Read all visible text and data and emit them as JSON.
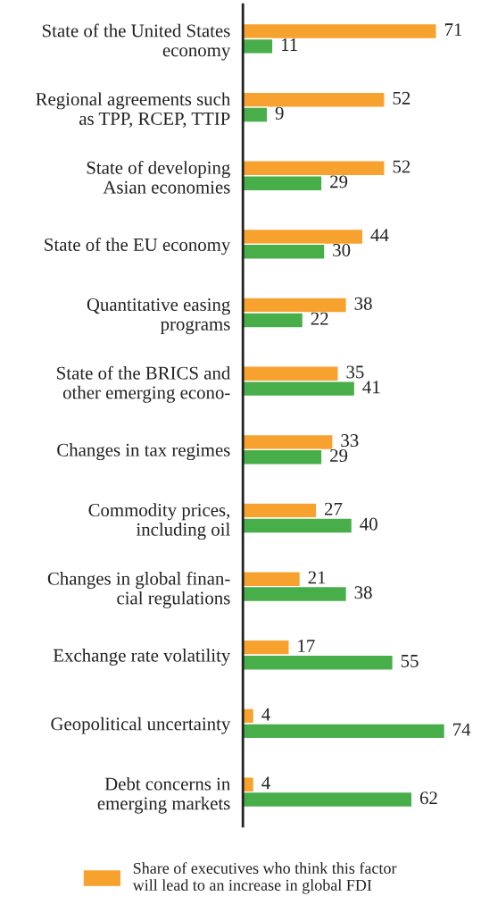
{
  "chart_data": {
    "type": "bar",
    "orientation": "horizontal",
    "data_labels": true,
    "legend": "bottom",
    "grid": false,
    "categories": [
      "State of the United States\neconomy",
      "Regional agreements such\nas TPP, RCEP, TTIP",
      "State of developing\nAsian economies",
      "State of the EU economy",
      "Quantitative easing\nprograms",
      "State of the BRICS and\nother emerging econo-",
      "Changes in tax regimes",
      "Commodity prices,\nincluding oil",
      "Changes in global finan-\ncial regulations",
      "Exchange rate volatility",
      "Geopolitical uncertainty",
      "Debt concerns in\nemerging markets"
    ],
    "series": [
      {
        "name": "Share of executives who think this factor\nwill lead to an increase in global FDI",
        "color": "#f7a12f",
        "values": [
          71,
          52,
          52,
          44,
          38,
          35,
          33,
          27,
          21,
          17,
          4,
          4
        ]
      },
      {
        "color": "#47ae4a",
        "values": [
          11,
          9,
          29,
          30,
          22,
          41,
          29,
          40,
          38,
          55,
          74,
          62
        ]
      }
    ]
  }
}
